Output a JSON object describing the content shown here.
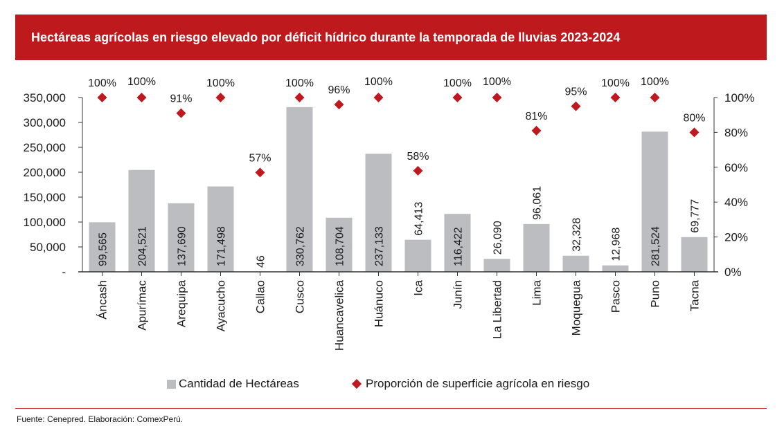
{
  "header": {
    "title": "Hectáreas agrícolas en riesgo elevado por déficit hídrico durante la temporada de lluvias 2023-2024"
  },
  "chart_data": {
    "type": "bar",
    "title": "Hectáreas agrícolas en riesgo elevado por déficit hídrico durante la temporada de lluvias 2023-2024",
    "categories": [
      "Áncash",
      "Apurímac",
      "Arequipa",
      "Ayacucho",
      "Callao",
      "Cusco",
      "Huancavelica",
      "Huánuco",
      "Ica",
      "Junín",
      "La Libertad",
      "Lima",
      "Moquegua",
      "Pasco",
      "Puno",
      "Tacna"
    ],
    "series": [
      {
        "name": "Cantidad de Hectáreas",
        "type": "bar",
        "axis": "left",
        "color": "#bcbdc1",
        "values": [
          99565,
          204521,
          137690,
          171498,
          46,
          330762,
          108704,
          237133,
          64413,
          116422,
          26090,
          96061,
          32328,
          12968,
          281524,
          69777
        ],
        "labels": [
          "99,565",
          "204,521",
          "137,690",
          "171,498",
          "46",
          "330,762",
          "108,704",
          "237,133",
          "64,413",
          "116,422",
          "26,090",
          "96,061",
          "32,328",
          "12,968",
          "281,524",
          "69,777"
        ]
      },
      {
        "name": "Proporción de superficie agrícola en riesgo",
        "type": "scatter",
        "axis": "right",
        "color": "#c0181f",
        "values": [
          100,
          100,
          91,
          100,
          57,
          100,
          96,
          100,
          58,
          100,
          100,
          81,
          95,
          100,
          100,
          80
        ],
        "labels": [
          "100%",
          "100%",
          "91%",
          "100%",
          "57%",
          "100%",
          "96%",
          "100%",
          "58%",
          "100%",
          "100%",
          "81%",
          "95%",
          "100%",
          "100%",
          "80%"
        ]
      }
    ],
    "y_left": {
      "range": [
        0,
        350000
      ],
      "ticks": [
        0,
        50000,
        100000,
        150000,
        200000,
        250000,
        300000,
        350000
      ],
      "tick_labels": [
        "-",
        "50,000",
        "100,000",
        "150,000",
        "200,000",
        "250,000",
        "300,000",
        "350,000"
      ]
    },
    "y_right": {
      "range": [
        0,
        100
      ],
      "ticks": [
        0,
        20,
        40,
        60,
        80,
        100
      ],
      "tick_labels": [
        "0%",
        "20%",
        "40%",
        "60%",
        "80%",
        "100%"
      ]
    },
    "grid": false,
    "legend": "bottom"
  },
  "legend": {
    "bar_label": "Cantidad de Hectáreas",
    "marker_label": "Proporción de superficie agrícola en riesgo"
  },
  "footer": {
    "source": "Fuente: Cenepred. Elaboración: ComexPerú."
  }
}
